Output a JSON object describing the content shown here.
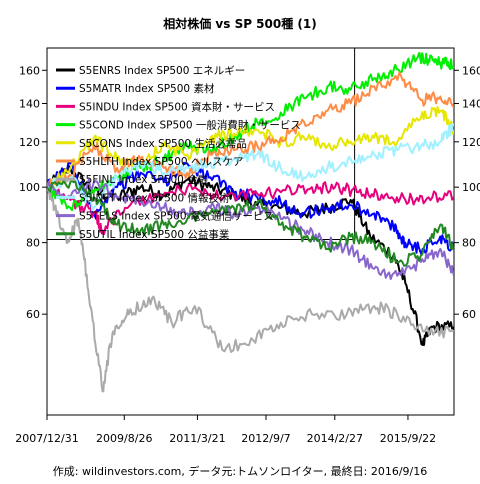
{
  "chart_data": {
    "type": "line",
    "title": "相対株価 vs SP 500種 (1)",
    "caption": "作成: wildinvestors.com, データ元:トムソンロイター, 最終日: 2016/9/16",
    "x_tick_labels": [
      "2007/12/31",
      "2009/8/26",
      "2011/3/21",
      "2012/9/7",
      "2014/2/27",
      "2015/9/22"
    ],
    "x_range": [
      "2007-12-31",
      "2016-09-16"
    ],
    "y_scale": "log",
    "y_ticks": [
      60,
      80,
      100,
      120,
      140,
      160
    ],
    "y_tick_labels": [
      "60",
      "80",
      "100",
      "120",
      "140",
      "160"
    ],
    "ylim": [
      40,
      175
    ],
    "reference_lines": {
      "horizontal_y": 81,
      "vertical_x": "2014-08-01"
    },
    "legend_position": "top-left",
    "series": [
      {
        "name": "S5ENRS Index SP500 エネルギー",
        "color": "#000000",
        "points": [
          [
            "2007-12-31",
            100
          ],
          [
            "2008-06-30",
            108
          ],
          [
            "2008-12-31",
            98
          ],
          [
            "2009-06-30",
            96
          ],
          [
            "2010-01-01",
            100
          ],
          [
            "2010-07-01",
            97
          ],
          [
            "2011-01-01",
            103
          ],
          [
            "2011-07-01",
            100
          ],
          [
            "2012-01-01",
            97
          ],
          [
            "2012-07-01",
            93
          ],
          [
            "2013-01-01",
            92
          ],
          [
            "2013-07-01",
            90
          ],
          [
            "2014-01-01",
            92
          ],
          [
            "2014-07-01",
            95
          ],
          [
            "2014-12-01",
            82
          ],
          [
            "2015-06-01",
            76
          ],
          [
            "2015-09-01",
            68
          ],
          [
            "2016-01-15",
            53
          ],
          [
            "2016-04-01",
            57
          ],
          [
            "2016-09-16",
            57
          ]
        ]
      },
      {
        "name": "S5MATR Index SP500 素材",
        "color": "#0000ff",
        "points": [
          [
            "2007-12-31",
            100
          ],
          [
            "2008-06-30",
            110
          ],
          [
            "2008-12-31",
            90
          ],
          [
            "2009-06-30",
            100
          ],
          [
            "2010-01-01",
            106
          ],
          [
            "2010-07-01",
            102
          ],
          [
            "2011-01-01",
            110
          ],
          [
            "2011-07-01",
            104
          ],
          [
            "2012-01-01",
            98
          ],
          [
            "2012-07-01",
            96
          ],
          [
            "2013-01-01",
            94
          ],
          [
            "2013-07-01",
            90
          ],
          [
            "2014-01-01",
            92
          ],
          [
            "2014-07-01",
            93
          ],
          [
            "2015-01-01",
            90
          ],
          [
            "2015-06-01",
            85
          ],
          [
            "2015-09-01",
            80
          ],
          [
            "2016-01-15",
            78
          ],
          [
            "2016-06-01",
            82
          ],
          [
            "2016-09-16",
            78
          ]
        ]
      },
      {
        "name": "S5INDU Index SP500 資本財・サービス",
        "color": "#e6007e",
        "points": [
          [
            "2007-12-31",
            100
          ],
          [
            "2008-06-30",
            95
          ],
          [
            "2008-12-31",
            90
          ],
          [
            "2009-03-09",
            84
          ],
          [
            "2009-09-01",
            92
          ],
          [
            "2010-06-01",
            97
          ],
          [
            "2011-03-01",
            100
          ],
          [
            "2011-09-01",
            96
          ],
          [
            "2012-06-01",
            97
          ],
          [
            "2013-01-01",
            98
          ],
          [
            "2013-09-01",
            100
          ],
          [
            "2014-03-01",
            100
          ],
          [
            "2014-09-01",
            98
          ],
          [
            "2015-03-01",
            97
          ],
          [
            "2015-09-01",
            95
          ],
          [
            "2016-03-01",
            96
          ],
          [
            "2016-09-16",
            96
          ]
        ]
      },
      {
        "name": "S5COND Index SP500 一般消費財・サービス",
        "color": "#00ee00",
        "points": [
          [
            "2007-12-31",
            100
          ],
          [
            "2008-06-30",
            92
          ],
          [
            "2008-12-31",
            98
          ],
          [
            "2009-06-30",
            104
          ],
          [
            "2010-01-01",
            108
          ],
          [
            "2010-07-01",
            112
          ],
          [
            "2011-01-01",
            118
          ],
          [
            "2011-07-01",
            116
          ],
          [
            "2012-01-01",
            122
          ],
          [
            "2012-07-01",
            130
          ],
          [
            "2013-01-01",
            135
          ],
          [
            "2013-07-01",
            143
          ],
          [
            "2014-01-01",
            150
          ],
          [
            "2014-07-01",
            148
          ],
          [
            "2015-01-01",
            155
          ],
          [
            "2015-06-01",
            160
          ],
          [
            "2015-12-01",
            168
          ],
          [
            "2016-03-01",
            167
          ],
          [
            "2016-06-01",
            165
          ],
          [
            "2016-09-16",
            163
          ]
        ]
      },
      {
        "name": "S5CONS Index SP500 生活必需品",
        "color": "#e6e600",
        "points": [
          [
            "2007-12-31",
            100
          ],
          [
            "2008-06-30",
            108
          ],
          [
            "2008-12-31",
            122
          ],
          [
            "2009-06-30",
            112
          ],
          [
            "2010-01-01",
            110
          ],
          [
            "2010-07-01",
            118
          ],
          [
            "2011-01-01",
            114
          ],
          [
            "2011-07-01",
            122
          ],
          [
            "2012-01-01",
            124
          ],
          [
            "2012-07-01",
            126
          ],
          [
            "2013-01-01",
            120
          ],
          [
            "2013-07-01",
            122
          ],
          [
            "2014-01-01",
            118
          ],
          [
            "2014-07-01",
            120
          ],
          [
            "2015-01-01",
            122
          ],
          [
            "2015-06-01",
            120
          ],
          [
            "2016-01-01",
            132
          ],
          [
            "2016-06-01",
            136
          ],
          [
            "2016-09-16",
            126
          ]
        ]
      },
      {
        "name": "S5HLTH Index SP500 ヘルスケア",
        "color": "#ff8c46",
        "points": [
          [
            "2007-12-31",
            100
          ],
          [
            "2008-06-30",
            105
          ],
          [
            "2008-12-31",
            118
          ],
          [
            "2009-06-30",
            108
          ],
          [
            "2010-01-01",
            112
          ],
          [
            "2010-07-01",
            108
          ],
          [
            "2011-01-01",
            106
          ],
          [
            "2011-07-01",
            114
          ],
          [
            "2012-01-01",
            116
          ],
          [
            "2012-07-01",
            118
          ],
          [
            "2013-01-01",
            122
          ],
          [
            "2013-07-01",
            130
          ],
          [
            "2014-01-01",
            136
          ],
          [
            "2014-07-01",
            140
          ],
          [
            "2015-01-01",
            150
          ],
          [
            "2015-08-01",
            156
          ],
          [
            "2016-01-01",
            142
          ],
          [
            "2016-06-01",
            144
          ],
          [
            "2016-09-16",
            138
          ]
        ]
      },
      {
        "name": "S5FINL Index SP500 金融",
        "color": "#aaaaaa",
        "points": [
          [
            "2007-12-31",
            100
          ],
          [
            "2008-03-01",
            92
          ],
          [
            "2008-06-01",
            80
          ],
          [
            "2008-09-01",
            88
          ],
          [
            "2008-12-01",
            62
          ],
          [
            "2009-03-09",
            44
          ],
          [
            "2009-06-01",
            56
          ],
          [
            "2009-10-01",
            60
          ],
          [
            "2010-04-01",
            64
          ],
          [
            "2010-09-01",
            58
          ],
          [
            "2011-03-01",
            62
          ],
          [
            "2011-10-01",
            52
          ],
          [
            "2012-06-01",
            54
          ],
          [
            "2013-01-01",
            58
          ],
          [
            "2013-09-01",
            60
          ],
          [
            "2014-06-01",
            60
          ],
          [
            "2015-01-01",
            62
          ],
          [
            "2015-07-01",
            60
          ],
          [
            "2016-02-01",
            56
          ],
          [
            "2016-09-16",
            56
          ]
        ]
      },
      {
        "name": "S5INFT Index SP500 情報技術",
        "color": "#a0f0ff",
        "points": [
          [
            "2007-12-31",
            100
          ],
          [
            "2008-06-30",
            104
          ],
          [
            "2008-12-31",
            92
          ],
          [
            "2009-06-30",
            104
          ],
          [
            "2010-01-01",
            110
          ],
          [
            "2010-07-01",
            106
          ],
          [
            "2011-01-01",
            108
          ],
          [
            "2011-07-01",
            110
          ],
          [
            "2012-01-01",
            112
          ],
          [
            "2012-07-01",
            114
          ],
          [
            "2013-01-01",
            108
          ],
          [
            "2013-07-01",
            104
          ],
          [
            "2014-01-01",
            108
          ],
          [
            "2014-07-01",
            112
          ],
          [
            "2015-01-01",
            114
          ],
          [
            "2015-07-01",
            116
          ],
          [
            "2016-01-01",
            118
          ],
          [
            "2016-06-01",
            120
          ],
          [
            "2016-09-16",
            128
          ]
        ]
      },
      {
        "name": "S5TELS Index SP500 電気通信サービス",
        "color": "#8866cc",
        "points": [
          [
            "2007-12-31",
            100
          ],
          [
            "2008-06-30",
            96
          ],
          [
            "2008-12-31",
            102
          ],
          [
            "2009-06-30",
            96
          ],
          [
            "2010-01-01",
            94
          ],
          [
            "2010-07-01",
            92
          ],
          [
            "2011-01-01",
            90
          ],
          [
            "2011-07-01",
            92
          ],
          [
            "2012-01-01",
            90
          ],
          [
            "2012-07-01",
            92
          ],
          [
            "2013-01-01",
            88
          ],
          [
            "2013-07-01",
            84
          ],
          [
            "2014-01-01",
            80
          ],
          [
            "2014-07-01",
            78
          ],
          [
            "2015-01-01",
            72
          ],
          [
            "2015-07-01",
            70
          ],
          [
            "2016-01-01",
            74
          ],
          [
            "2016-06-01",
            78
          ],
          [
            "2016-09-16",
            70
          ]
        ]
      },
      {
        "name": "S5UTIL Index SP500 公益事業",
        "color": "#228822",
        "points": [
          [
            "2007-12-31",
            100
          ],
          [
            "2008-06-30",
            102
          ],
          [
            "2008-12-31",
            96
          ],
          [
            "2009-06-30",
            86
          ],
          [
            "2010-01-01",
            84
          ],
          [
            "2010-07-01",
            86
          ],
          [
            "2011-01-01",
            88
          ],
          [
            "2011-07-01",
            90
          ],
          [
            "2012-01-01",
            92
          ],
          [
            "2012-07-01",
            94
          ],
          [
            "2013-01-01",
            86
          ],
          [
            "2013-07-01",
            82
          ],
          [
            "2014-01-01",
            78
          ],
          [
            "2014-07-01",
            82
          ],
          [
            "2015-01-01",
            80
          ],
          [
            "2015-07-01",
            74
          ],
          [
            "2016-01-01",
            76
          ],
          [
            "2016-06-01",
            86
          ],
          [
            "2016-09-16",
            78
          ]
        ]
      }
    ]
  }
}
